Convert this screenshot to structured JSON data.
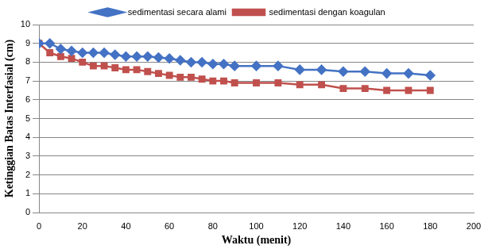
{
  "chart_data": {
    "type": "line",
    "x_label": "Waktu (menit)",
    "y_label": "Ketinggian Batas Interfasial (cm)",
    "x": [
      0,
      5,
      10,
      15,
      20,
      25,
      30,
      35,
      40,
      45,
      50,
      55,
      60,
      65,
      70,
      75,
      80,
      85,
      90,
      100,
      110,
      120,
      130,
      140,
      150,
      160,
      170,
      180
    ],
    "series": [
      {
        "name": "sedimentasi secara alami",
        "color": "#4472c4",
        "marker": "diamond",
        "values": [
          9,
          9,
          8.7,
          8.6,
          8.5,
          8.5,
          8.5,
          8.4,
          8.3,
          8.3,
          8.3,
          8.25,
          8.2,
          8.1,
          8,
          8,
          7.9,
          7.9,
          7.8,
          7.8,
          7.8,
          7.6,
          7.6,
          7.5,
          7.5,
          7.4,
          7.4,
          7.3
        ]
      },
      {
        "name": "sedimentasi dengan koagulan",
        "color": "#c0504d",
        "marker": "square",
        "values": [
          9,
          8.5,
          8.3,
          8.2,
          8,
          7.8,
          7.8,
          7.7,
          7.6,
          7.6,
          7.5,
          7.4,
          7.3,
          7.2,
          7.2,
          7.1,
          7,
          7,
          6.9,
          6.9,
          6.9,
          6.8,
          6.8,
          6.6,
          6.6,
          6.5,
          6.5,
          6.5
        ]
      }
    ],
    "xlim": [
      0,
      200
    ],
    "xticks": [
      0,
      20,
      40,
      60,
      80,
      100,
      120,
      140,
      160,
      180,
      200
    ],
    "ylim": [
      0,
      10
    ],
    "yticks": [
      0,
      1,
      2,
      3,
      4,
      5,
      6,
      7,
      8,
      9,
      10
    ],
    "grid": "y",
    "legend": "top"
  }
}
